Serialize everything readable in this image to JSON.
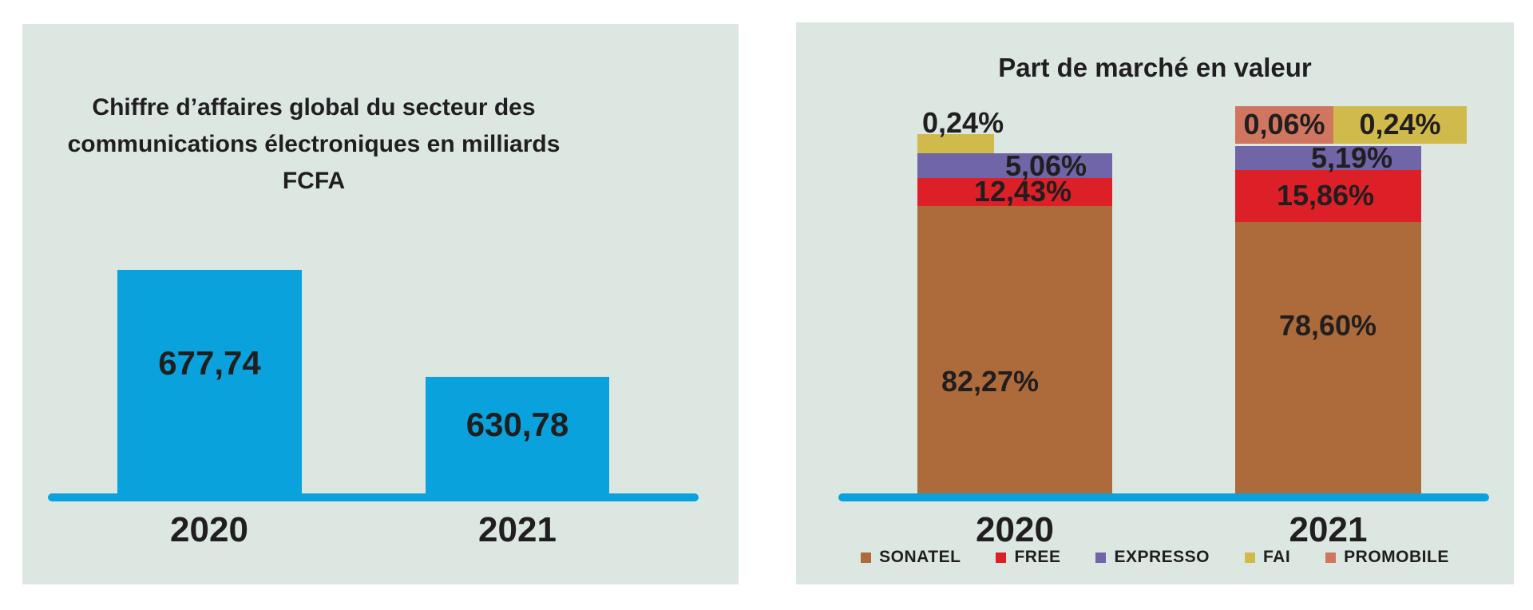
{
  "colors": {
    "panel_bg": "#dce7e2",
    "text": "#211e1f",
    "bar_cyan": "#0aa2dc",
    "axis": "#0aa2dc",
    "sonatel": "#ad6b3b",
    "free": "#dd2028",
    "expresso": "#6f65a7",
    "fai": "#d1ba4c",
    "promobile": "#cf7560"
  },
  "left_chart": {
    "title": "Chiffre d'affaires global du secteur des communications électroniques en milliards FCFA",
    "title_lines": [
      "Chiffre d’affaires global du secteur des",
      "communications électroniques en milliards",
      "FCFA"
    ],
    "categories": [
      "2020",
      "2021"
    ],
    "value_labels": [
      "677,74",
      "630,78"
    ]
  },
  "right_chart": {
    "title": "Part de marché en valeur",
    "categories": [
      "2020",
      "2021"
    ],
    "bar_2020": {
      "sonatel": "82,27%",
      "free": "12,43%",
      "expresso": "5,06%",
      "fai": "0,24%"
    },
    "bar_2021": {
      "sonatel": "78,60%",
      "free": "15,86%",
      "expresso": "5,19%",
      "fai": "0,24%",
      "promobile": "0,06%"
    },
    "legend": {
      "sonatel": "SONATEL",
      "free": "FREE",
      "expresso": "EXPRESSO",
      "fai": "FAI",
      "promobile": "PROMOBILE"
    }
  },
  "chart_data": [
    {
      "type": "bar",
      "title": "Chiffre d'affaires global du secteur des communications électroniques en milliards FCFA",
      "categories": [
        "2020",
        "2021"
      ],
      "values": [
        677.74,
        630.78
      ],
      "value_labels": [
        "677,74",
        "630,78"
      ],
      "xlabel": "",
      "ylabel": "milliards FCFA",
      "bar_color": "#0aa2dc",
      "grid": false,
      "legend_position": "none",
      "baseline_color": "#0aa2dc"
    },
    {
      "type": "bar",
      "subtype": "stacked",
      "title": "Part de marché en valeur",
      "categories": [
        "2020",
        "2021"
      ],
      "unit": "%",
      "series": [
        {
          "name": "SONATEL",
          "values": [
            82.27,
            78.6
          ],
          "color": "#ad6b3b"
        },
        {
          "name": "FREE",
          "values": [
            12.43,
            15.86
          ],
          "color": "#dd2028"
        },
        {
          "name": "EXPRESSO",
          "values": [
            5.06,
            5.19
          ],
          "color": "#6f65a7"
        },
        {
          "name": "FAI",
          "values": [
            0.24,
            0.24
          ],
          "color": "#d1ba4c"
        },
        {
          "name": "PROMOBILE",
          "values": [
            null,
            0.06
          ],
          "color": "#cf7560"
        }
      ],
      "grid": false,
      "legend_position": "bottom",
      "baseline_color": "#0aa2dc"
    }
  ]
}
